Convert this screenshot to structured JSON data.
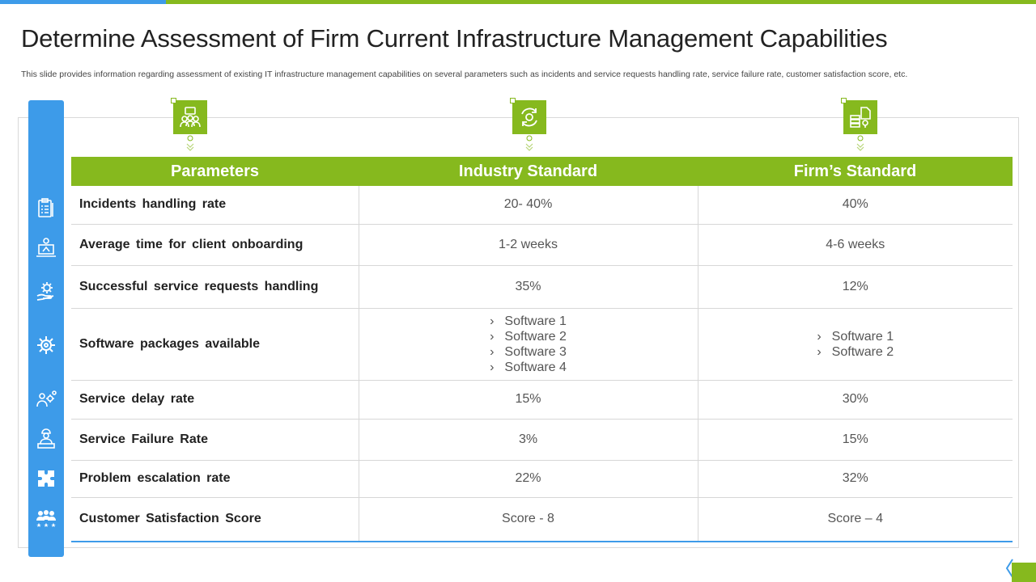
{
  "slide": {
    "title": "Determine Assessment of Firm Current Infrastructure Management Capabilities",
    "subtitle": "This slide provides information regarding assessment of existing  IT infrastructure management capabilities on several parameters such as incidents and service requests handling rate, service failure rate, customer satisfaction score, etc."
  },
  "colors": {
    "green": "#86b91e",
    "blue": "#3d9be9"
  },
  "column_icons": [
    "team-network-icon",
    "refresh-gear-icon",
    "server-document-icon"
  ],
  "side_icons": [
    "clipboard-checklist-icon",
    "computer-user-icon",
    "gear-hand-icon",
    "gear-cog-icon",
    "person-gears-icon",
    "worker-desk-icon",
    "puzzle-icon",
    "customer-group-icon"
  ],
  "table": {
    "headers": [
      "Parameters",
      "Industry Standard",
      "Firm’s Standard"
    ],
    "rows": [
      {
        "param": "Incidents  handling  rate",
        "industry": "20- 40%",
        "firm": "40%"
      },
      {
        "param": "Average  time  for  client  onboarding",
        "industry": "1-2 weeks",
        "firm": "4-6 weeks"
      },
      {
        "param": "Successful  service  requests  handling",
        "industry": "35%",
        "firm": "12%"
      },
      {
        "param": "Software  packages  available",
        "industry_list": [
          "Software 1",
          "Software 2",
          "Software 3",
          "Software 4"
        ],
        "firm_list": [
          "Software 1",
          "Software 2"
        ]
      },
      {
        "param": "Service  delay  rate",
        "industry": "15%",
        "firm": "30%"
      },
      {
        "param": "Service  Failure  Rate",
        "industry": "3%",
        "firm": "15%"
      },
      {
        "param": "Problem  escalation  rate",
        "industry": "22%",
        "firm": "32%"
      },
      {
        "param": "Customer  Satisfaction  Score",
        "industry": "Score - 8",
        "firm": "Score – 4"
      }
    ]
  }
}
